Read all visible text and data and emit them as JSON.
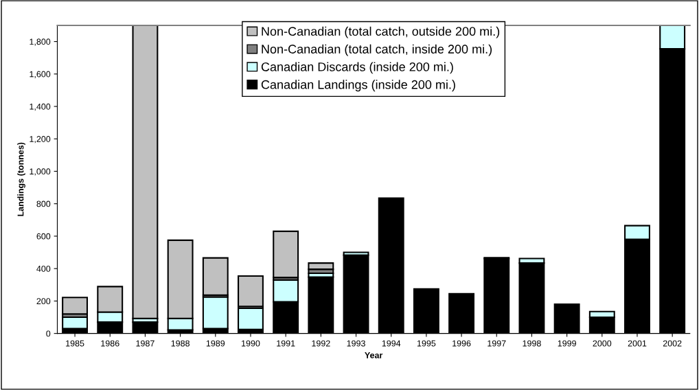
{
  "chart_data": {
    "type": "bar",
    "stacked": true,
    "xlabel": "Year",
    "ylabel": "Landings (tonnes)",
    "categories": [
      "1985",
      "1986",
      "1987",
      "1988",
      "1989",
      "1990",
      "1991",
      "1992",
      "1993",
      "1994",
      "1995",
      "1996",
      "1997",
      "1998",
      "1999",
      "2000",
      "2001",
      "2002"
    ],
    "series": [
      {
        "name": "Canadian Landings (inside 200 mi.)",
        "color": "#000000",
        "values": [
          30,
          70,
          70,
          22,
          30,
          25,
          195,
          348,
          483,
          835,
          275,
          245,
          462,
          434,
          180,
          100,
          580,
          1755
        ]
      },
      {
        "name": "Canadian Discards (inside 200 mi.)",
        "color": "#ccffff",
        "values": [
          70,
          62,
          22,
          71,
          195,
          130,
          135,
          23,
          17,
          null,
          null,
          null,
          5,
          28,
          null,
          35,
          85,
          145
        ]
      },
      {
        "name": "Non-Canadian (total catch, inside 200 mi.)",
        "color": "#808080",
        "values": [
          20,
          null,
          null,
          null,
          12,
          12,
          15,
          25,
          null,
          null,
          null,
          null,
          null,
          null,
          null,
          null,
          null,
          null
        ]
      },
      {
        "name": "Non-Canadian (total catch, outside 200 mi.)",
        "color": "#c0c0c0",
        "values": [
          102,
          157,
          1808,
          482,
          229,
          187,
          285,
          38,
          null,
          null,
          null,
          null,
          null,
          null,
          null,
          null,
          null,
          null
        ]
      }
    ],
    "ylim": [
      0,
      1900
    ],
    "yticks": [
      0,
      200,
      400,
      600,
      800,
      {
        "value": 1000,
        "label": "1,000"
      },
      {
        "value": 1200,
        "label": "1,200"
      },
      {
        "value": 1400,
        "label": "1,400"
      },
      {
        "value": 1600,
        "label": "1,600"
      },
      {
        "value": 1800,
        "label": "1,800"
      }
    ],
    "legend": "top",
    "grid": false
  }
}
